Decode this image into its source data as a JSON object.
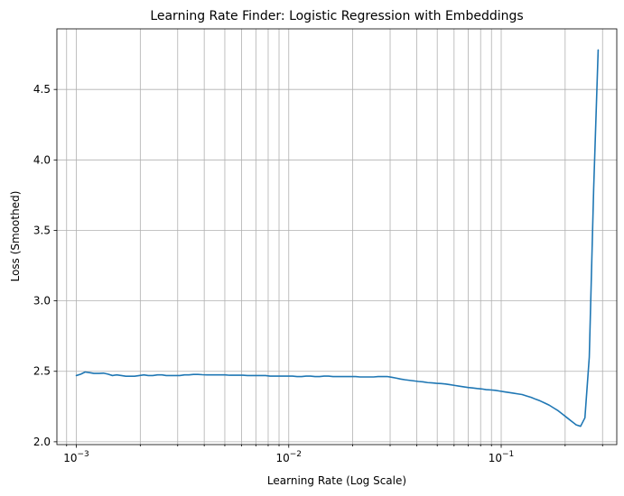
{
  "chart_data": {
    "type": "line",
    "title": "Learning Rate Finder: Logistic Regression with Embeddings",
    "xlabel": "Learning Rate (Log Scale)",
    "ylabel": "Loss (Smoothed)",
    "xscale": "log",
    "xlim": [
      0.00081,
      0.35
    ],
    "ylim": [
      1.98,
      4.93
    ],
    "grid": true,
    "line_color": "#1f77b4",
    "x_ticks": [
      {
        "value": 0.001,
        "base": "10",
        "exp": "−3"
      },
      {
        "value": 0.01,
        "base": "10",
        "exp": "−2"
      },
      {
        "value": 0.1,
        "base": "10",
        "exp": "−1"
      }
    ],
    "y_ticks": [
      {
        "value": 2.0,
        "label": "2.0"
      },
      {
        "value": 2.5,
        "label": "2.5"
      },
      {
        "value": 3.0,
        "label": "3.0"
      },
      {
        "value": 3.5,
        "label": "3.5"
      },
      {
        "value": 4.0,
        "label": "4.0"
      },
      {
        "value": 4.5,
        "label": "4.5"
      }
    ],
    "series": [
      {
        "x": [
          0.001,
          0.00105,
          0.0011,
          0.00116,
          0.00121,
          0.00128,
          0.00134,
          0.00141,
          0.00148,
          0.00155,
          0.00163,
          0.00171,
          0.0018,
          0.00188,
          0.00198,
          0.00208,
          0.00218,
          0.00229,
          0.00241,
          0.00253,
          0.00265,
          0.00279,
          0.00293,
          0.00307,
          0.00323,
          0.00339,
          0.00356,
          0.00374,
          0.00392,
          0.00412,
          0.00433,
          0.00454,
          0.00477,
          0.00501,
          0.00526,
          0.00552,
          0.0058,
          0.00609,
          0.00639,
          0.00671,
          0.00705,
          0.0074,
          0.00777,
          0.00816,
          0.00857,
          0.009,
          0.00945,
          0.00992,
          0.01042,
          0.01094,
          0.01149,
          0.01206,
          0.01266,
          0.0133,
          0.01396,
          0.01466,
          0.01539,
          0.01616,
          0.01697,
          0.01782,
          0.01871,
          0.01965,
          0.02063,
          0.02166,
          0.02274,
          0.02388,
          0.02508,
          0.02633,
          0.02765,
          0.02903,
          0.03048,
          0.03201,
          0.03361,
          0.03529,
          0.03706,
          0.03891,
          0.04086,
          0.0429,
          0.04505,
          0.0473,
          0.04967,
          0.05215,
          0.05476,
          0.0575,
          0.06037,
          0.06339,
          0.06656,
          0.06989,
          0.07339,
          0.07706,
          0.08091,
          0.08496,
          0.0892,
          0.09367,
          0.09835,
          0.10327,
          0.10843,
          0.11385,
          0.11955,
          0.12552,
          0.1318,
          0.13839,
          0.14531,
          0.15258,
          0.16021,
          0.16822,
          0.17663,
          0.18546,
          0.19473,
          0.20447,
          0.21469,
          0.22543,
          0.23643,
          0.2478,
          0.2598,
          0.2725,
          0.2861
        ],
        "y": [
          2.47,
          2.48,
          2.495,
          2.49,
          2.485,
          2.485,
          2.487,
          2.48,
          2.47,
          2.475,
          2.47,
          2.465,
          2.465,
          2.465,
          2.47,
          2.475,
          2.47,
          2.47,
          2.475,
          2.475,
          2.47,
          2.47,
          2.47,
          2.47,
          2.475,
          2.475,
          2.478,
          2.478,
          2.476,
          2.475,
          2.475,
          2.475,
          2.475,
          2.475,
          2.472,
          2.472,
          2.472,
          2.472,
          2.47,
          2.47,
          2.47,
          2.47,
          2.47,
          2.466,
          2.466,
          2.466,
          2.466,
          2.466,
          2.466,
          2.463,
          2.463,
          2.466,
          2.466,
          2.463,
          2.463,
          2.466,
          2.466,
          2.463,
          2.463,
          2.463,
          2.463,
          2.463,
          2.463,
          2.46,
          2.46,
          2.46,
          2.46,
          2.463,
          2.463,
          2.463,
          2.458,
          2.452,
          2.445,
          2.44,
          2.436,
          2.432,
          2.428,
          2.425,
          2.42,
          2.418,
          2.415,
          2.413,
          2.41,
          2.405,
          2.4,
          2.395,
          2.39,
          2.385,
          2.382,
          2.378,
          2.375,
          2.37,
          2.368,
          2.365,
          2.36,
          2.355,
          2.35,
          2.345,
          2.34,
          2.335,
          2.325,
          2.315,
          2.302,
          2.29,
          2.275,
          2.26,
          2.24,
          2.22,
          2.195,
          2.17,
          2.145,
          2.12,
          2.11,
          2.17,
          2.6,
          3.8,
          4.78
        ]
      }
    ]
  }
}
